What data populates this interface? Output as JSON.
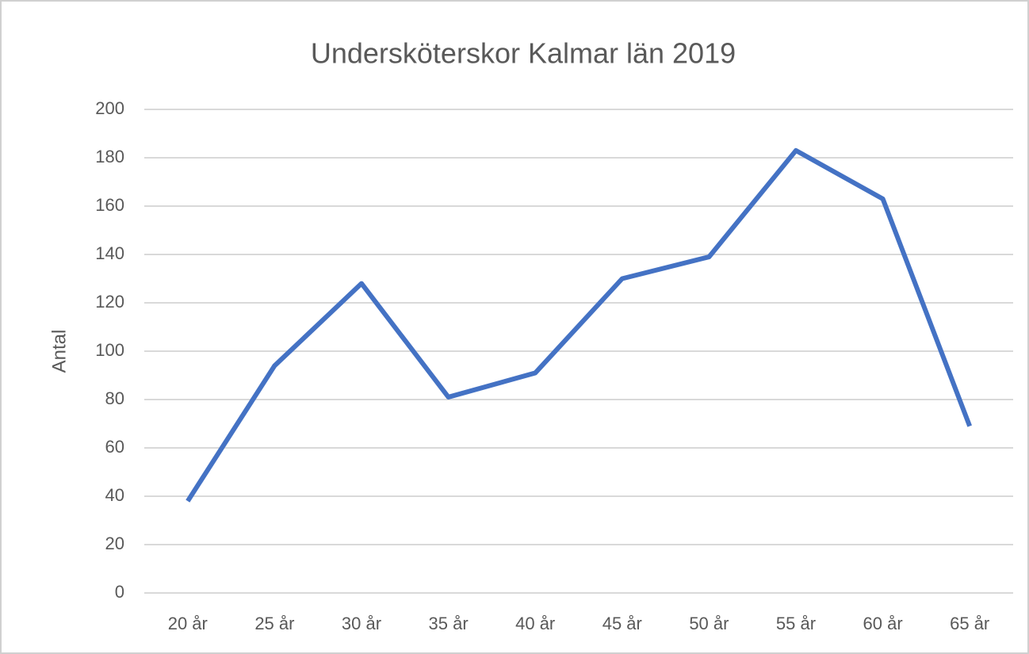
{
  "chart_data": {
    "type": "line",
    "title": "Undersköterskor Kalmar län 2019",
    "y_label": "Antal",
    "categories": [
      "20 år",
      "25 år",
      "30 år",
      "35 år",
      "40 år",
      "45 år",
      "50 år",
      "55 år",
      "60 år",
      "65 år"
    ],
    "series": [
      {
        "name": "Antal",
        "color": "#4472c4",
        "values": [
          38,
          94,
          128,
          81,
          91,
          130,
          139,
          183,
          163,
          69
        ]
      }
    ],
    "ylim": [
      0,
      200
    ],
    "yticks": [
      0,
      20,
      40,
      60,
      80,
      100,
      120,
      140,
      160,
      180,
      200
    ],
    "grid": true
  }
}
